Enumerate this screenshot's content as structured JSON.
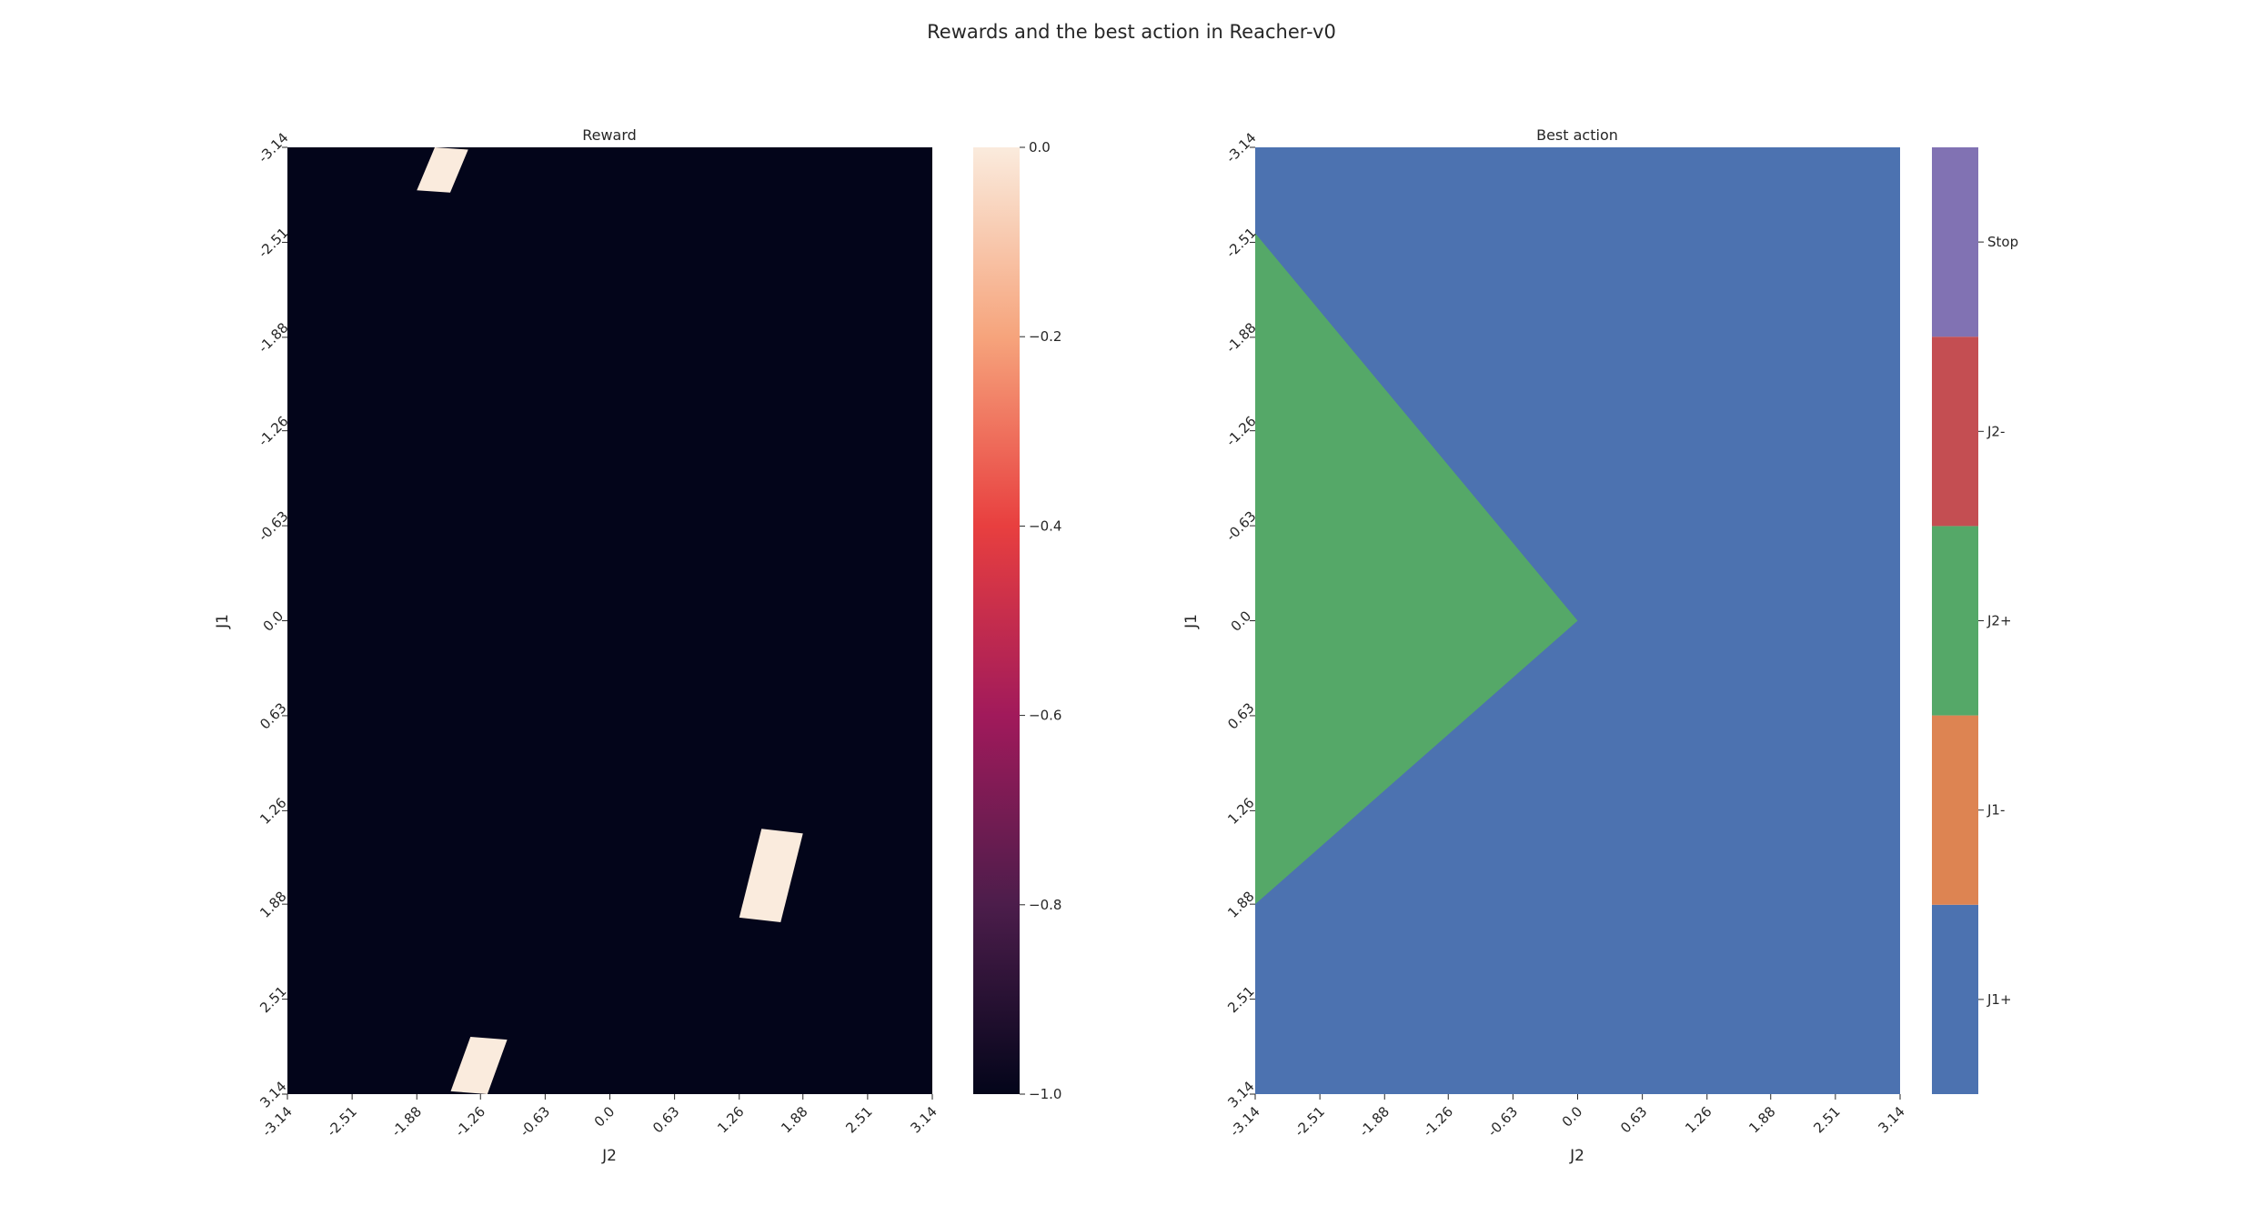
{
  "figure": {
    "title": "Rewards and the best action in Reacher-v0"
  },
  "chart_data": [
    {
      "type": "heatmap",
      "title": "Reward",
      "xlabel": "J2",
      "ylabel": "J1",
      "x_tick_labels": [
        "-3.14",
        "-2.51",
        "-1.88",
        "-1.26",
        "-0.63",
        "0.0",
        "0.63",
        "1.26",
        "1.88",
        "2.51",
        "3.14"
      ],
      "y_tick_labels": [
        "-3.14",
        "-2.51",
        "-1.88",
        "-1.26",
        "-0.63",
        "0.0",
        "0.63",
        "1.26",
        "1.88",
        "2.51",
        "3.14"
      ],
      "xlim": [
        -3.14,
        3.14
      ],
      "ylim": [
        -3.14,
        3.14
      ],
      "y_axis_direction": "top-to-bottom",
      "value_range": [
        -1.0,
        0.0
      ],
      "background_value": -1.0,
      "colormap": "rocket",
      "colorbar_ticks": [
        "0.0",
        "-0.2",
        "-0.4",
        "-0.6",
        "-0.8",
        "-1.0"
      ],
      "colorbar_colors": [
        "#03051a",
        "#4c1d4b",
        "#a11a5b",
        "#e83f3f",
        "#f6a47c",
        "#faebdd"
      ],
      "regions_value_0": [
        {
          "j2_range": [
            -1.88,
            -1.38
          ],
          "j1_range": [
            -3.14,
            -2.84
          ]
        },
        {
          "j2_range": [
            1.26,
            1.88
          ],
          "j1_range": [
            1.38,
            2.0
          ]
        },
        {
          "j2_range": [
            -1.55,
            -1.0
          ],
          "j1_range": [
            2.76,
            3.14
          ]
        }
      ]
    },
    {
      "type": "heatmap",
      "title": "Best action",
      "xlabel": "J2",
      "ylabel": "J1",
      "x_tick_labels": [
        "-3.14",
        "-2.51",
        "-1.88",
        "-1.26",
        "-0.63",
        "0.0",
        "0.63",
        "1.26",
        "1.88",
        "2.51",
        "3.14"
      ],
      "y_tick_labels": [
        "-3.14",
        "-2.51",
        "-1.88",
        "-1.26",
        "-0.63",
        "0.0",
        "0.63",
        "1.26",
        "1.88",
        "2.51",
        "3.14"
      ],
      "xlim": [
        -3.14,
        3.14
      ],
      "ylim": [
        -3.14,
        3.14
      ],
      "y_axis_direction": "top-to-bottom",
      "categories": [
        "J1+",
        "J1-",
        "J2+",
        "J2-",
        "Stop"
      ],
      "category_colors": [
        "#4c72b0",
        "#dd8452",
        "#55a868",
        "#c44e52",
        "#8172b3"
      ],
      "default_action": "J1+",
      "region_J2plus": {
        "shape": "triangle",
        "vertices_j2_j1": [
          [
            -3.14,
            -2.57
          ],
          [
            0.0,
            0.0
          ],
          [
            -3.14,
            1.88
          ]
        ]
      }
    }
  ]
}
